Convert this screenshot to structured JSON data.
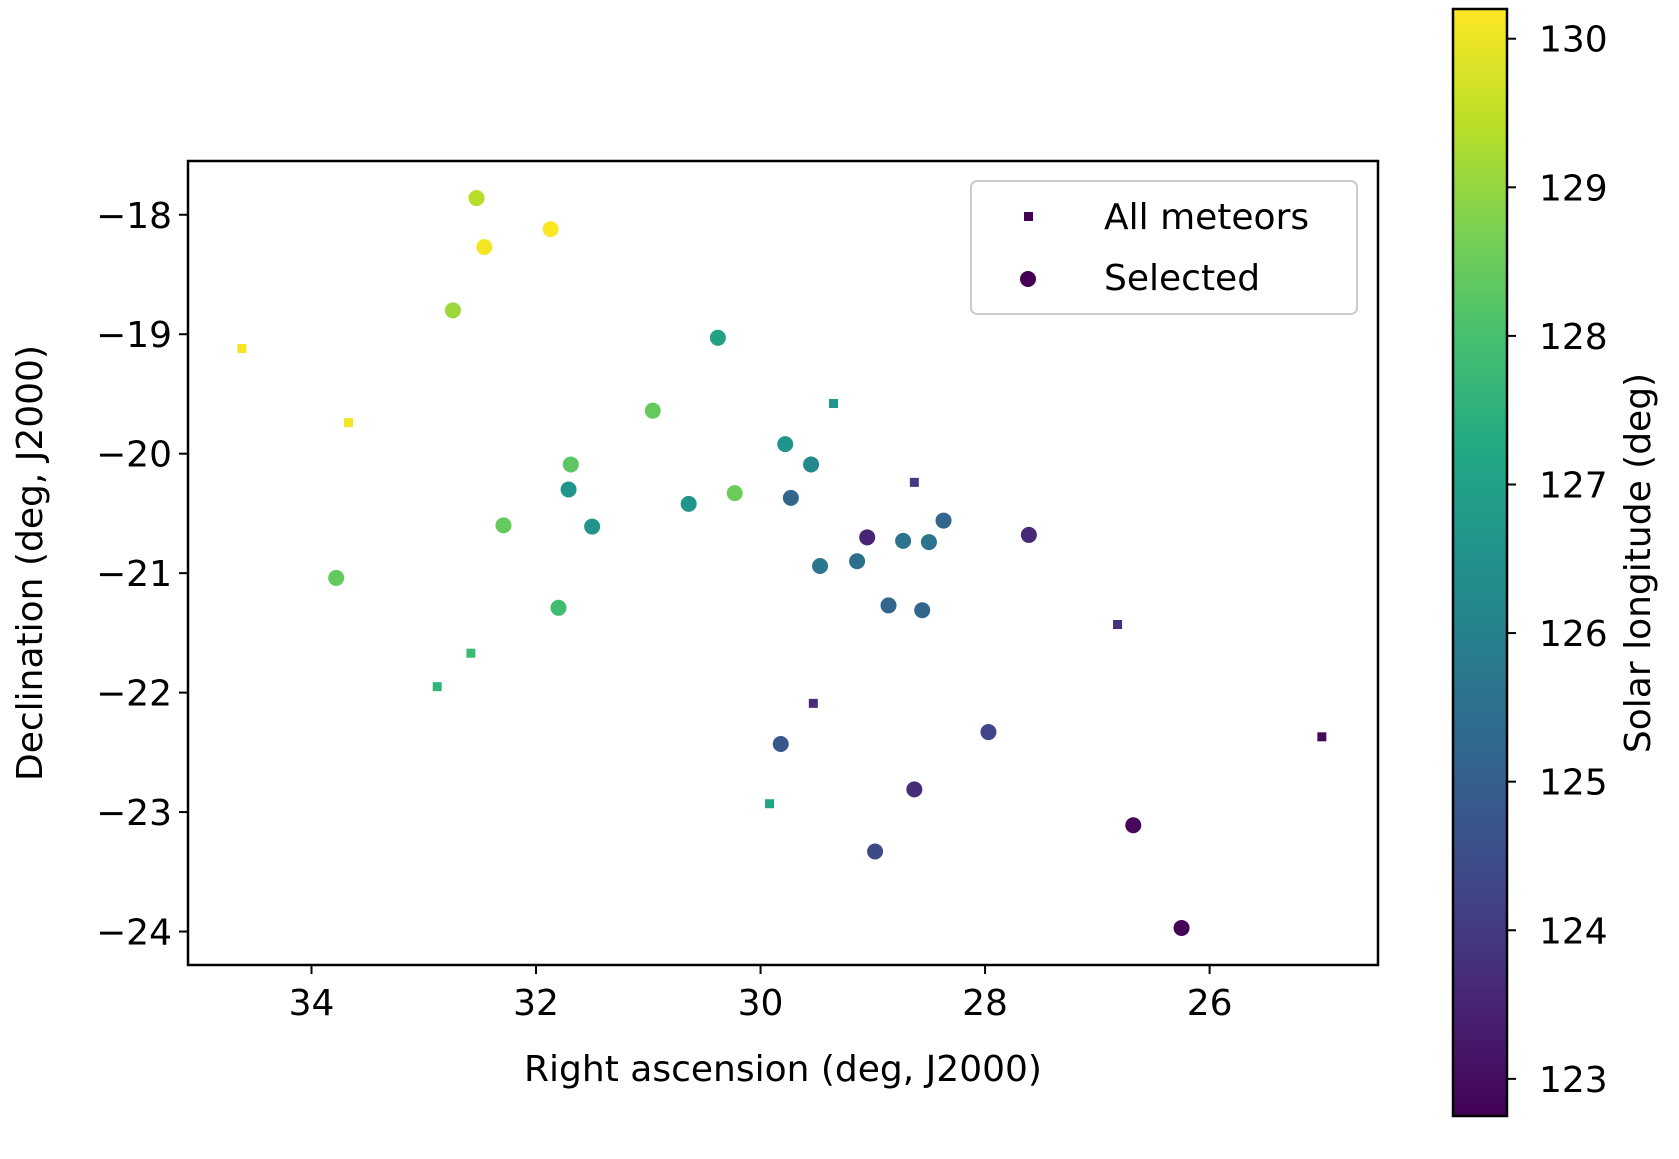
{
  "chart_data": {
    "type": "scatter",
    "xlabel": "Right ascension (deg, J2000)",
    "ylabel": "Declination (deg, J2000)",
    "xlim": [
      35.1,
      24.5
    ],
    "ylim": [
      -24.28,
      -17.55
    ],
    "x_ticks": [
      {
        "value": 34,
        "label": "34"
      },
      {
        "value": 32,
        "label": "32"
      },
      {
        "value": 30,
        "label": "30"
      },
      {
        "value": 28,
        "label": "28"
      },
      {
        "value": 26,
        "label": "26"
      }
    ],
    "y_ticks": [
      {
        "value": -18,
        "label": "−18"
      },
      {
        "value": -19,
        "label": "−19"
      },
      {
        "value": -20,
        "label": "−20"
      },
      {
        "value": -21,
        "label": "−21"
      },
      {
        "value": -22,
        "label": "−22"
      },
      {
        "value": -23,
        "label": "−23"
      },
      {
        "value": -24,
        "label": "−24"
      }
    ],
    "colorbar": {
      "label": "Solar longitude (deg)",
      "colormap": "viridis",
      "range": [
        122.75,
        130.2
      ],
      "ticks": [
        {
          "value": 123,
          "label": "123"
        },
        {
          "value": 124,
          "label": "124"
        },
        {
          "value": 125,
          "label": "125"
        },
        {
          "value": 126,
          "label": "126"
        },
        {
          "value": 127,
          "label": "127"
        },
        {
          "value": 128,
          "label": "128"
        },
        {
          "value": 129,
          "label": "129"
        },
        {
          "value": 130,
          "label": "130"
        }
      ]
    },
    "legend": {
      "placement": "upper right",
      "entries": [
        "All meteors",
        "Selected"
      ]
    },
    "grid": false,
    "series": [
      {
        "name": "All meteors",
        "marker": "square",
        "points": [
          {
            "x": 34.62,
            "y": -19.12,
            "c": 130.1
          },
          {
            "x": 33.67,
            "y": -19.74,
            "c": 130.1
          },
          {
            "x": 32.58,
            "y": -21.67,
            "c": 127.8
          },
          {
            "x": 32.88,
            "y": -21.95,
            "c": 127.6
          },
          {
            "x": 29.35,
            "y": -19.58,
            "c": 126.6
          },
          {
            "x": 29.92,
            "y": -22.93,
            "c": 127.2
          },
          {
            "x": 28.63,
            "y": -20.24,
            "c": 124.0
          },
          {
            "x": 29.53,
            "y": -22.09,
            "c": 123.7
          },
          {
            "x": 26.82,
            "y": -21.43,
            "c": 123.8
          },
          {
            "x": 25.0,
            "y": -22.37,
            "c": 122.9
          }
        ]
      },
      {
        "name": "Selected",
        "marker": "circle",
        "points": [
          {
            "x": 32.53,
            "y": -17.86,
            "c": 129.4
          },
          {
            "x": 32.46,
            "y": -18.27,
            "c": 130.1
          },
          {
            "x": 31.87,
            "y": -18.12,
            "c": 130.2
          },
          {
            "x": 32.74,
            "y": -18.8,
            "c": 129.1
          },
          {
            "x": 30.38,
            "y": -19.03,
            "c": 127.0
          },
          {
            "x": 30.96,
            "y": -19.64,
            "c": 128.4
          },
          {
            "x": 31.69,
            "y": -20.09,
            "c": 128.3
          },
          {
            "x": 31.71,
            "y": -20.3,
            "c": 126.6
          },
          {
            "x": 32.29,
            "y": -20.6,
            "c": 128.4
          },
          {
            "x": 31.5,
            "y": -20.61,
            "c": 126.6
          },
          {
            "x": 30.64,
            "y": -20.42,
            "c": 126.6
          },
          {
            "x": 30.23,
            "y": -20.33,
            "c": 128.5
          },
          {
            "x": 29.78,
            "y": -19.92,
            "c": 126.6
          },
          {
            "x": 29.55,
            "y": -20.09,
            "c": 126.2
          },
          {
            "x": 29.73,
            "y": -20.37,
            "c": 125.2
          },
          {
            "x": 33.78,
            "y": -21.04,
            "c": 128.4
          },
          {
            "x": 31.8,
            "y": -21.29,
            "c": 127.9
          },
          {
            "x": 29.47,
            "y": -20.94,
            "c": 125.7
          },
          {
            "x": 29.14,
            "y": -20.9,
            "c": 125.5
          },
          {
            "x": 29.05,
            "y": -20.7,
            "c": 123.5
          },
          {
            "x": 28.73,
            "y": -20.73,
            "c": 125.6
          },
          {
            "x": 28.5,
            "y": -20.74,
            "c": 125.6
          },
          {
            "x": 28.37,
            "y": -20.56,
            "c": 125.2
          },
          {
            "x": 27.61,
            "y": -20.68,
            "c": 123.6
          },
          {
            "x": 28.86,
            "y": -21.27,
            "c": 125.2
          },
          {
            "x": 28.56,
            "y": -21.31,
            "c": 125.2
          },
          {
            "x": 29.82,
            "y": -22.43,
            "c": 124.8
          },
          {
            "x": 27.97,
            "y": -22.33,
            "c": 124.3
          },
          {
            "x": 28.63,
            "y": -22.81,
            "c": 123.7
          },
          {
            "x": 28.98,
            "y": -23.33,
            "c": 124.4
          },
          {
            "x": 26.68,
            "y": -23.11,
            "c": 122.9
          },
          {
            "x": 26.25,
            "y": -23.97,
            "c": 122.8
          }
        ]
      }
    ]
  }
}
